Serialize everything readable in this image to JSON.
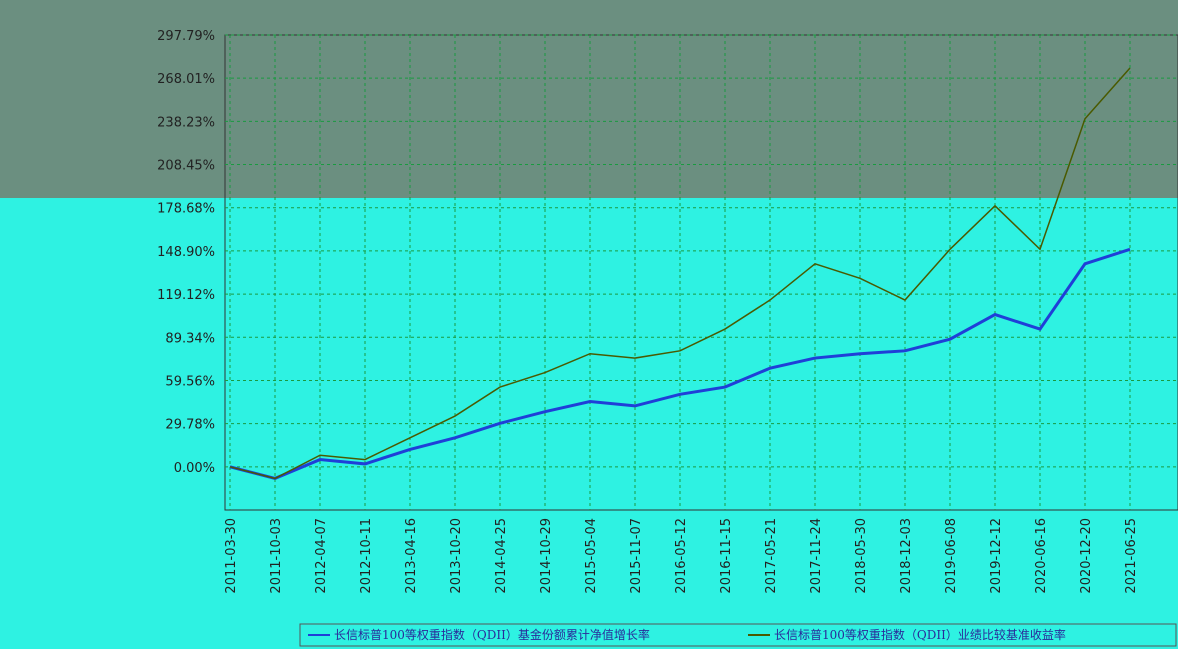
{
  "chart_data": {
    "type": "line",
    "x": [
      "2011-03-30",
      "2011-10-03",
      "2012-04-07",
      "2012-10-11",
      "2013-04-16",
      "2013-10-20",
      "2014-04-25",
      "2014-10-29",
      "2015-05-04",
      "2015-11-07",
      "2016-05-12",
      "2016-11-15",
      "2017-05-21",
      "2017-11-24",
      "2018-05-30",
      "2018-12-03",
      "2019-06-08",
      "2019-12-12",
      "2020-06-16",
      "2020-12-20",
      "2021-06-25"
    ],
    "series": [
      {
        "name": "长信标普100等权重指数（QDII）基金份额累计净值增长率",
        "color": "#1f3fd8",
        "values": [
          0,
          -8,
          5,
          2,
          12,
          20,
          30,
          38,
          45,
          42,
          50,
          55,
          68,
          75,
          78,
          80,
          88,
          105,
          95,
          140,
          150
        ]
      },
      {
        "name": "长信标普100等权重指数（QDII）业绩比较基准收益率",
        "color": "#4a5a00",
        "values": [
          0,
          -8,
          8,
          5,
          20,
          35,
          55,
          65,
          78,
          75,
          80,
          95,
          115,
          140,
          130,
          115,
          150,
          180,
          150,
          240,
          275
        ]
      }
    ],
    "ylim": [
      -29.78,
      297.79
    ],
    "yticks": [
      {
        "value": 0,
        "label": "0.00%"
      },
      {
        "value": 29.78,
        "label": "29.78%"
      },
      {
        "value": 59.56,
        "label": "59.56%"
      },
      {
        "value": 89.34,
        "label": "89.34%"
      },
      {
        "value": 119.12,
        "label": "119.12%"
      },
      {
        "value": 148.9,
        "label": "148.90%"
      },
      {
        "value": 178.68,
        "label": "178.68%"
      },
      {
        "value": 208.45,
        "label": "208.45%"
      },
      {
        "value": 238.23,
        "label": "238.23%"
      },
      {
        "value": 268.01,
        "label": "268.01%"
      },
      {
        "value": 297.79,
        "label": "297.79%"
      }
    ],
    "grid": true
  }
}
